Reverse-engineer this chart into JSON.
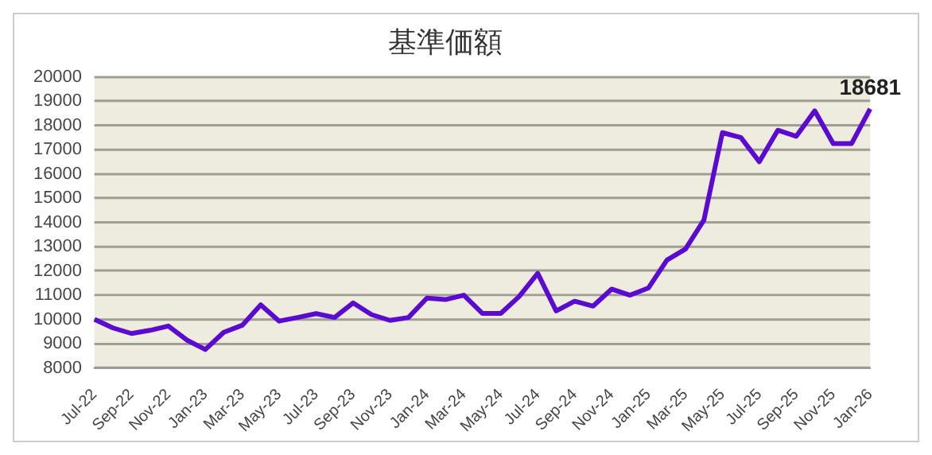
{
  "chart_data": {
    "type": "line",
    "title": "基準価額",
    "categories": [
      "Jul-22",
      null,
      "Sep-22",
      null,
      "Nov-22",
      null,
      "Jan-23",
      null,
      "Mar-23",
      null,
      "May-23",
      null,
      "Jul-23",
      null,
      "Sep-23",
      null,
      "Nov-23",
      null,
      "Jan-24",
      null,
      "Mar-24",
      null,
      "May-24",
      null,
      "Jul-24",
      null,
      "Sep-24",
      null,
      "Nov-24",
      null,
      "Jan-25",
      null,
      "Mar-25",
      null,
      "May-25",
      null,
      "Jul-25",
      null,
      "Sep-25",
      null,
      "Nov-25",
      null,
      "Jan-26"
    ],
    "series": [
      {
        "color": "#5b0bd1",
        "values": [
          10000,
          9650,
          9420,
          9550,
          9730,
          9150,
          8760,
          9470,
          9760,
          10600,
          9930,
          10080,
          10240,
          10080,
          10680,
          10200,
          9960,
          10080,
          10880,
          10820,
          11000,
          10250,
          10250,
          10950,
          11900,
          10350,
          10750,
          10550,
          11250,
          11000,
          11300,
          12450,
          12900,
          14100,
          17700,
          17500,
          16500,
          17800,
          17550,
          18600,
          17250,
          17250,
          18681
        ],
        "value_labels": [
          null,
          null,
          null,
          null,
          null,
          null,
          null,
          null,
          null,
          null,
          null,
          null,
          null,
          null,
          null,
          null,
          null,
          null,
          null,
          null,
          null,
          null,
          null,
          null,
          null,
          null,
          null,
          null,
          null,
          null,
          null,
          null,
          null,
          null,
          null,
          null,
          null,
          null,
          null,
          null,
          null,
          null,
          "18681"
        ]
      }
    ],
    "ylim": [
      8000,
      20000
    ],
    "yticks": [
      8000,
      9000,
      10000,
      11000,
      12000,
      13000,
      14000,
      15000,
      16000,
      17000,
      18000,
      19000,
      20000
    ],
    "grid": "y",
    "legend": false,
    "marker": "none",
    "line_style": "solid"
  }
}
